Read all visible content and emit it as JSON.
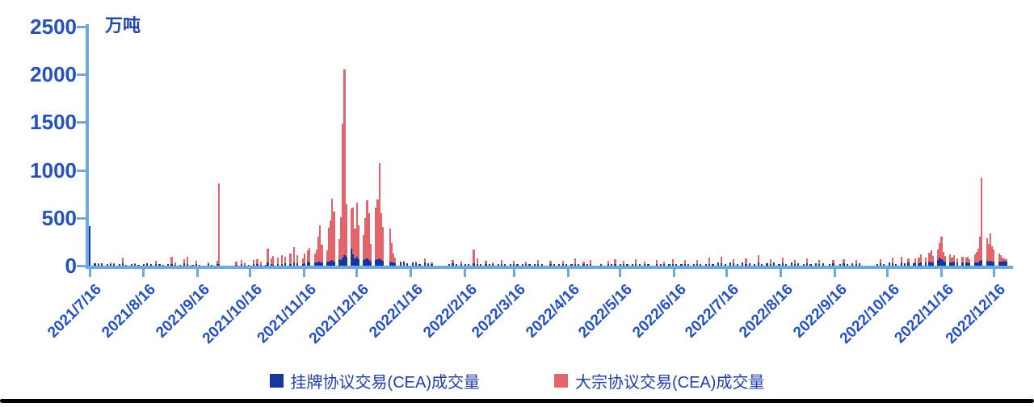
{
  "colors": {
    "axis": "#6FA8DC",
    "tick_label": "#2450C0",
    "legend_text": "#1F3FA8",
    "listed_blue": "#12379F",
    "block_red": "#E3646B",
    "bottom_border": "#000000"
  },
  "chart_data": {
    "type": "bar",
    "stacked": true,
    "title": "",
    "ylabel": "万吨",
    "xlabel": "",
    "ylim": [
      0,
      2500
    ],
    "yticks": [
      0,
      500,
      1000,
      1500,
      2000,
      2500
    ],
    "grid": false,
    "legend_position": "bottom-center",
    "x_is_time": true,
    "x_start": "2021/7/16",
    "x_end": "2022/12/23",
    "xtick_labels": [
      "2021/7/16",
      "2021/8/16",
      "2021/9/16",
      "2021/10/16",
      "2021/11/16",
      "2021/12/16",
      "2022/1/16",
      "2022/2/16",
      "2022/3/16",
      "2022/4/16",
      "2022/5/16",
      "2022/6/16",
      "2022/7/16",
      "2022/8/16",
      "2022/9/16",
      "2022/10/16",
      "2022/11/16",
      "2022/12/16"
    ],
    "legend": [
      {
        "label": "挂牌协议交易(CEA)成交量",
        "color": "#12379F"
      },
      {
        "label": "大宗协议交易(CEA)成交量",
        "color": "#E3646B"
      }
    ],
    "columns": [
      "date",
      "挂牌协议交易(CEA)成交量",
      "大宗协议交易(CEA)成交量"
    ],
    "points": [
      [
        "2021/7/16",
        410,
        0
      ],
      [
        "2021/7/19",
        22,
        0
      ],
      [
        "2021/7/21",
        16,
        12
      ],
      [
        "2021/7/23",
        25,
        0
      ],
      [
        "2021/7/26",
        18,
        0
      ],
      [
        "2021/7/28",
        14,
        22
      ],
      [
        "2021/7/30",
        20,
        8
      ],
      [
        "2021/8/2",
        16,
        0
      ],
      [
        "2021/8/4",
        22,
        60
      ],
      [
        "2021/8/6",
        12,
        0
      ],
      [
        "2021/8/9",
        18,
        0
      ],
      [
        "2021/8/11",
        15,
        14
      ],
      [
        "2021/8/13",
        10,
        0
      ],
      [
        "2021/8/16",
        20,
        0
      ],
      [
        "2021/8/18",
        26,
        0
      ],
      [
        "2021/8/20",
        15,
        0
      ],
      [
        "2021/8/23",
        20,
        32
      ],
      [
        "2021/8/25",
        14,
        0
      ],
      [
        "2021/8/27",
        10,
        0
      ],
      [
        "2021/8/30",
        18,
        0
      ],
      [
        "2021/9/1",
        15,
        78
      ],
      [
        "2021/9/3",
        12,
        26
      ],
      [
        "2021/9/6",
        10,
        0
      ],
      [
        "2021/9/8",
        24,
        42
      ],
      [
        "2021/9/10",
        20,
        70
      ],
      [
        "2021/9/13",
        12,
        0
      ],
      [
        "2021/9/15",
        18,
        30
      ],
      [
        "2021/9/17",
        10,
        0
      ],
      [
        "2021/9/22",
        15,
        20
      ],
      [
        "2021/9/24",
        12,
        0
      ],
      [
        "2021/9/27",
        14,
        36
      ],
      [
        "2021/9/28",
        20,
        840
      ],
      [
        "2021/10/8",
        10,
        30
      ],
      [
        "2021/10/11",
        15,
        46
      ],
      [
        "2021/10/13",
        12,
        22
      ],
      [
        "2021/10/15",
        10,
        0
      ],
      [
        "2021/10/18",
        20,
        42
      ],
      [
        "2021/10/20",
        15,
        56
      ],
      [
        "2021/10/22",
        12,
        30
      ],
      [
        "2021/10/25",
        10,
        0
      ],
      [
        "2021/10/26",
        30,
        145
      ],
      [
        "2021/10/28",
        15,
        62
      ],
      [
        "2021/10/29",
        12,
        92
      ],
      [
        "2021/11/1",
        20,
        62
      ],
      [
        "2021/11/3",
        15,
        92
      ],
      [
        "2021/11/5",
        25,
        72
      ],
      [
        "2021/11/8",
        20,
        104
      ],
      [
        "2021/11/10",
        30,
        165
      ],
      [
        "2021/11/12",
        25,
        82
      ],
      [
        "2021/11/15",
        20,
        60
      ],
      [
        "2021/11/16",
        25,
        100
      ],
      [
        "2021/11/18",
        40,
        124
      ],
      [
        "2021/11/19",
        30,
        152
      ],
      [
        "2021/11/22",
        35,
        92
      ],
      [
        "2021/11/23",
        30,
        142
      ],
      [
        "2021/11/24",
        45,
        262
      ],
      [
        "2021/11/25",
        40,
        385
      ],
      [
        "2021/11/26",
        35,
        182
      ],
      [
        "2021/11/29",
        40,
        122
      ],
      [
        "2021/11/30",
        45,
        350
      ],
      [
        "2021/12/1",
        50,
        425
      ],
      [
        "2021/12/2",
        55,
        650
      ],
      [
        "2021/12/3",
        45,
        520
      ],
      [
        "2021/12/6",
        70,
        205
      ],
      [
        "2021/12/7",
        60,
        445
      ],
      [
        "2021/12/8",
        85,
        1400
      ],
      [
        "2021/12/9",
        110,
        1940
      ],
      [
        "2021/12/10",
        90,
        555
      ],
      [
        "2021/12/13",
        180,
        420
      ],
      [
        "2021/12/14",
        120,
        485
      ],
      [
        "2021/12/15",
        80,
        305
      ],
      [
        "2021/12/16",
        95,
        565
      ],
      [
        "2021/12/17",
        70,
        355
      ],
      [
        "2021/12/20",
        60,
        265
      ],
      [
        "2021/12/21",
        70,
        425
      ],
      [
        "2021/12/22",
        80,
        600
      ],
      [
        "2021/12/23",
        60,
        485
      ],
      [
        "2021/12/24",
        40,
        185
      ],
      [
        "2021/12/27",
        60,
        550
      ],
      [
        "2021/12/28",
        70,
        625
      ],
      [
        "2021/12/29",
        80,
        990
      ],
      [
        "2021/12/30",
        60,
        485
      ],
      [
        "2021/12/31",
        50,
        355
      ],
      [
        "2022/1/4",
        40,
        345
      ],
      [
        "2022/1/5",
        35,
        205
      ],
      [
        "2022/1/6",
        30,
        95
      ],
      [
        "2022/1/7",
        25,
        62
      ],
      [
        "2022/1/10",
        40,
        0
      ],
      [
        "2022/1/12",
        30,
        22
      ],
      [
        "2022/1/14",
        25,
        0
      ],
      [
        "2022/1/17",
        30,
        0
      ],
      [
        "2022/1/19",
        25,
        16
      ],
      [
        "2022/1/21",
        20,
        0
      ],
      [
        "2022/1/24",
        30,
        42
      ],
      [
        "2022/1/26",
        25,
        0
      ],
      [
        "2022/1/28",
        20,
        12
      ],
      [
        "2022/2/7",
        20,
        0
      ],
      [
        "2022/2/9",
        25,
        32
      ],
      [
        "2022/2/11",
        15,
        0
      ],
      [
        "2022/2/14",
        20,
        26
      ],
      [
        "2022/2/16",
        15,
        0
      ],
      [
        "2022/2/18",
        20,
        0
      ],
      [
        "2022/2/21",
        25,
        145
      ],
      [
        "2022/2/23",
        15,
        62
      ],
      [
        "2022/2/25",
        20,
        0
      ],
      [
        "2022/2/28",
        15,
        32
      ],
      [
        "2022/3/2",
        20,
        0
      ],
      [
        "2022/3/4",
        15,
        22
      ],
      [
        "2022/3/7",
        20,
        0
      ],
      [
        "2022/3/9",
        15,
        46
      ],
      [
        "2022/3/11",
        20,
        0
      ],
      [
        "2022/3/14",
        15,
        0
      ],
      [
        "2022/3/16",
        20,
        30
      ],
      [
        "2022/3/18",
        15,
        0
      ],
      [
        "2022/3/21",
        20,
        0
      ],
      [
        "2022/3/23",
        15,
        26
      ],
      [
        "2022/3/25",
        20,
        0
      ],
      [
        "2022/3/28",
        15,
        0
      ],
      [
        "2022/3/30",
        20,
        42
      ],
      [
        "2022/4/1",
        15,
        0
      ],
      [
        "2022/4/6",
        20,
        30
      ],
      [
        "2022/4/8",
        15,
        0
      ],
      [
        "2022/4/11",
        20,
        0
      ],
      [
        "2022/4/13",
        15,
        36
      ],
      [
        "2022/4/15",
        20,
        0
      ],
      [
        "2022/4/18",
        15,
        0
      ],
      [
        "2022/4/20",
        20,
        52
      ],
      [
        "2022/4/22",
        15,
        0
      ],
      [
        "2022/4/25",
        20,
        26
      ],
      [
        "2022/4/27",
        15,
        0
      ],
      [
        "2022/4/29",
        20,
        40
      ],
      [
        "2022/5/5",
        15,
        0
      ],
      [
        "2022/5/9",
        20,
        30
      ],
      [
        "2022/5/11",
        15,
        0
      ],
      [
        "2022/5/13",
        20,
        46
      ],
      [
        "2022/5/16",
        15,
        0
      ],
      [
        "2022/5/18",
        20,
        32
      ],
      [
        "2022/5/20",
        15,
        0
      ],
      [
        "2022/5/23",
        20,
        0
      ],
      [
        "2022/5/25",
        15,
        56
      ],
      [
        "2022/5/27",
        20,
        0
      ],
      [
        "2022/5/30",
        15,
        30
      ],
      [
        "2022/6/1",
        20,
        0
      ],
      [
        "2022/6/6",
        15,
        40
      ],
      [
        "2022/6/8",
        20,
        0
      ],
      [
        "2022/6/10",
        15,
        30
      ],
      [
        "2022/6/13",
        20,
        0
      ],
      [
        "2022/6/15",
        15,
        52
      ],
      [
        "2022/6/17",
        20,
        0
      ],
      [
        "2022/6/20",
        15,
        0
      ],
      [
        "2022/6/22",
        20,
        36
      ],
      [
        "2022/6/24",
        15,
        0
      ],
      [
        "2022/6/27",
        20,
        0
      ],
      [
        "2022/6/29",
        15,
        46
      ],
      [
        "2022/7/1",
        20,
        0
      ],
      [
        "2022/7/4",
        15,
        0
      ],
      [
        "2022/7/6",
        20,
        62
      ],
      [
        "2022/7/8",
        15,
        0
      ],
      [
        "2022/7/11",
        30,
        0
      ],
      [
        "2022/7/13",
        25,
        72
      ],
      [
        "2022/7/15",
        20,
        0
      ],
      [
        "2022/7/18",
        35,
        0
      ],
      [
        "2022/7/20",
        25,
        42
      ],
      [
        "2022/7/22",
        20,
        0
      ],
      [
        "2022/7/25",
        30,
        0
      ],
      [
        "2022/7/27",
        20,
        56
      ],
      [
        "2022/7/29",
        25,
        0
      ],
      [
        "2022/8/1",
        20,
        0
      ],
      [
        "2022/8/3",
        30,
        82
      ],
      [
        "2022/8/5",
        20,
        0
      ],
      [
        "2022/8/8",
        25,
        0
      ],
      [
        "2022/8/10",
        20,
        46
      ],
      [
        "2022/8/12",
        30,
        0
      ],
      [
        "2022/8/15",
        20,
        0
      ],
      [
        "2022/8/17",
        25,
        62
      ],
      [
        "2022/8/19",
        20,
        0
      ],
      [
        "2022/8/22",
        30,
        0
      ],
      [
        "2022/8/24",
        20,
        36
      ],
      [
        "2022/8/26",
        25,
        0
      ],
      [
        "2022/8/29",
        20,
        0
      ],
      [
        "2022/8/31",
        25,
        52
      ],
      [
        "2022/9/2",
        20,
        0
      ],
      [
        "2022/9/5",
        25,
        0
      ],
      [
        "2022/9/7",
        20,
        42
      ],
      [
        "2022/9/9",
        25,
        0
      ],
      [
        "2022/9/13",
        20,
        0
      ],
      [
        "2022/9/15",
        25,
        32
      ],
      [
        "2022/9/19",
        20,
        0
      ],
      [
        "2022/9/21",
        25,
        46
      ],
      [
        "2022/9/23",
        20,
        0
      ],
      [
        "2022/9/26",
        25,
        0
      ],
      [
        "2022/9/28",
        20,
        36
      ],
      [
        "2022/9/30",
        25,
        0
      ],
      [
        "2022/10/10",
        20,
        0
      ],
      [
        "2022/10/12",
        25,
        42
      ],
      [
        "2022/10/14",
        20,
        0
      ],
      [
        "2022/10/17",
        30,
        0
      ],
      [
        "2022/10/19",
        25,
        56
      ],
      [
        "2022/10/21",
        20,
        0
      ],
      [
        "2022/10/24",
        30,
        62
      ],
      [
        "2022/10/26",
        25,
        0
      ],
      [
        "2022/10/28",
        30,
        46
      ],
      [
        "2022/10/31",
        25,
        0
      ],
      [
        "2022/11/1",
        30,
        42
      ],
      [
        "2022/11/3",
        25,
        62
      ],
      [
        "2022/11/4",
        35,
        82
      ],
      [
        "2022/11/7",
        30,
        52
      ],
      [
        "2022/11/9",
        40,
        92
      ],
      [
        "2022/11/10",
        35,
        125
      ],
      [
        "2022/11/11",
        30,
        72
      ],
      [
        "2022/11/14",
        60,
        105
      ],
      [
        "2022/11/15",
        85,
        155
      ],
      [
        "2022/11/16",
        70,
        230
      ],
      [
        "2022/11/17",
        50,
        92
      ],
      [
        "2022/11/18",
        40,
        62
      ],
      [
        "2022/11/21",
        35,
        82
      ],
      [
        "2022/11/22",
        30,
        52
      ],
      [
        "2022/11/23",
        40,
        72
      ],
      [
        "2022/11/25",
        35,
        42
      ],
      [
        "2022/11/28",
        30,
        62
      ],
      [
        "2022/11/30",
        35,
        52
      ],
      [
        "2022/12/1",
        30,
        62
      ],
      [
        "2022/12/2",
        25,
        42
      ],
      [
        "2022/12/5",
        30,
        85
      ],
      [
        "2022/12/6",
        35,
        105
      ],
      [
        "2022/12/7",
        30,
        145
      ],
      [
        "2022/12/8",
        50,
        255
      ],
      [
        "2022/12/9",
        60,
        860
      ],
      [
        "2022/12/12",
        50,
        235
      ],
      [
        "2022/12/13",
        45,
        185
      ],
      [
        "2022/12/14",
        50,
        285
      ],
      [
        "2022/12/15",
        40,
        165
      ],
      [
        "2022/12/16",
        45,
        125
      ],
      [
        "2022/12/19",
        40,
        85
      ],
      [
        "2022/12/20",
        45,
        62
      ],
      [
        "2022/12/21",
        40,
        42
      ],
      [
        "2022/12/22",
        50,
        26
      ],
      [
        "2022/12/23",
        45,
        20
      ]
    ]
  }
}
